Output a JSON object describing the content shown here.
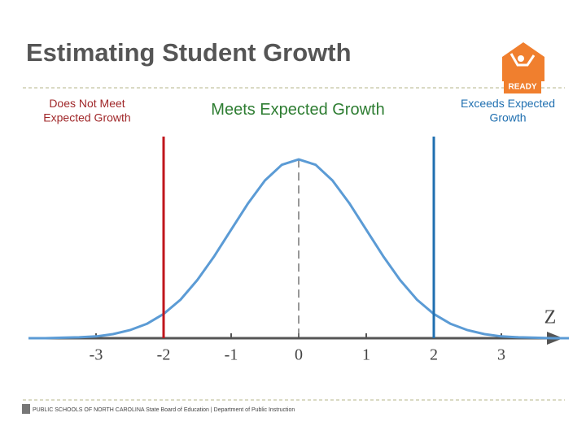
{
  "header": {
    "title": "Estimating Student Growth",
    "logo": "READY"
  },
  "footer": {
    "text": "PUBLIC SCHOOLS OF NORTH CAROLINA State Board of Education | Department of Public Instruction"
  },
  "chart_data": {
    "type": "line",
    "regions": [
      "Does Not Meet Expected Growth",
      "Meets Expected Growth",
      "Exceeds Expected Growth"
    ],
    "x_label": "Z",
    "x": [
      -4,
      -3.75,
      -3.5,
      -3.25,
      -3,
      -2.75,
      -2.5,
      -2.25,
      -2,
      -1.75,
      -1.5,
      -1.25,
      -1,
      -0.75,
      -0.5,
      -0.25,
      0,
      0.25,
      0.5,
      0.75,
      1,
      1.25,
      1.5,
      1.75,
      2,
      2.25,
      2.5,
      2.75,
      3,
      3.25,
      3.5,
      3.75,
      4
    ],
    "values": [
      0.0,
      0.0,
      0.001,
      0.002,
      0.004,
      0.009,
      0.018,
      0.032,
      0.054,
      0.086,
      0.13,
      0.183,
      0.242,
      0.301,
      0.352,
      0.387,
      0.399,
      0.387,
      0.352,
      0.301,
      0.242,
      0.183,
      0.13,
      0.086,
      0.054,
      0.032,
      0.018,
      0.009,
      0.004,
      0.002,
      0.001,
      0.0,
      0.0
    ],
    "color": "#5b9bd5",
    "xlim": [
      -4,
      4
    ],
    "ylim": [
      0,
      0.45
    ],
    "xticks": [
      -3,
      -2,
      -1,
      0,
      1,
      2,
      3
    ],
    "cutoffs": [
      {
        "value": -2,
        "color": "#c0161c"
      },
      {
        "value": 2,
        "color": "#1f6fb0"
      }
    ],
    "center_line": 0
  }
}
